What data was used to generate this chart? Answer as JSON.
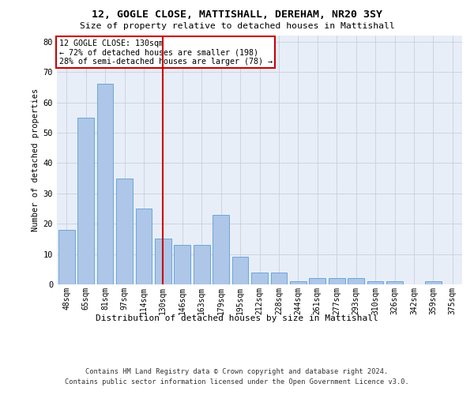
{
  "title": "12, GOGLE CLOSE, MATTISHALL, DEREHAM, NR20 3SY",
  "subtitle": "Size of property relative to detached houses in Mattishall",
  "xlabel": "Distribution of detached houses by size in Mattishall",
  "ylabel": "Number of detached properties",
  "categories": [
    "48sqm",
    "65sqm",
    "81sqm",
    "97sqm",
    "114sqm",
    "130sqm",
    "146sqm",
    "163sqm",
    "179sqm",
    "195sqm",
    "212sqm",
    "228sqm",
    "244sqm",
    "261sqm",
    "277sqm",
    "293sqm",
    "310sqm",
    "326sqm",
    "342sqm",
    "359sqm",
    "375sqm"
  ],
  "values": [
    18,
    55,
    66,
    35,
    25,
    15,
    13,
    13,
    23,
    9,
    4,
    4,
    1,
    2,
    2,
    2,
    1,
    1,
    0,
    1,
    0
  ],
  "bar_color": "#aec6e8",
  "bar_edge_color": "#5a9fd4",
  "vline_x_index": 5,
  "vline_color": "#cc0000",
  "annotation_text": "12 GOGLE CLOSE: 130sqm\n← 72% of detached houses are smaller (198)\n28% of semi-detached houses are larger (78) →",
  "annotation_box_color": "#cc0000",
  "ylim": [
    0,
    82
  ],
  "yticks": [
    0,
    10,
    20,
    30,
    40,
    50,
    60,
    70,
    80
  ],
  "grid_color": "#c8d0dc",
  "bg_color": "#e8eef8",
  "footer_line1": "Contains HM Land Registry data © Crown copyright and database right 2024.",
  "footer_line2": "Contains public sector information licensed under the Open Government Licence v3.0."
}
